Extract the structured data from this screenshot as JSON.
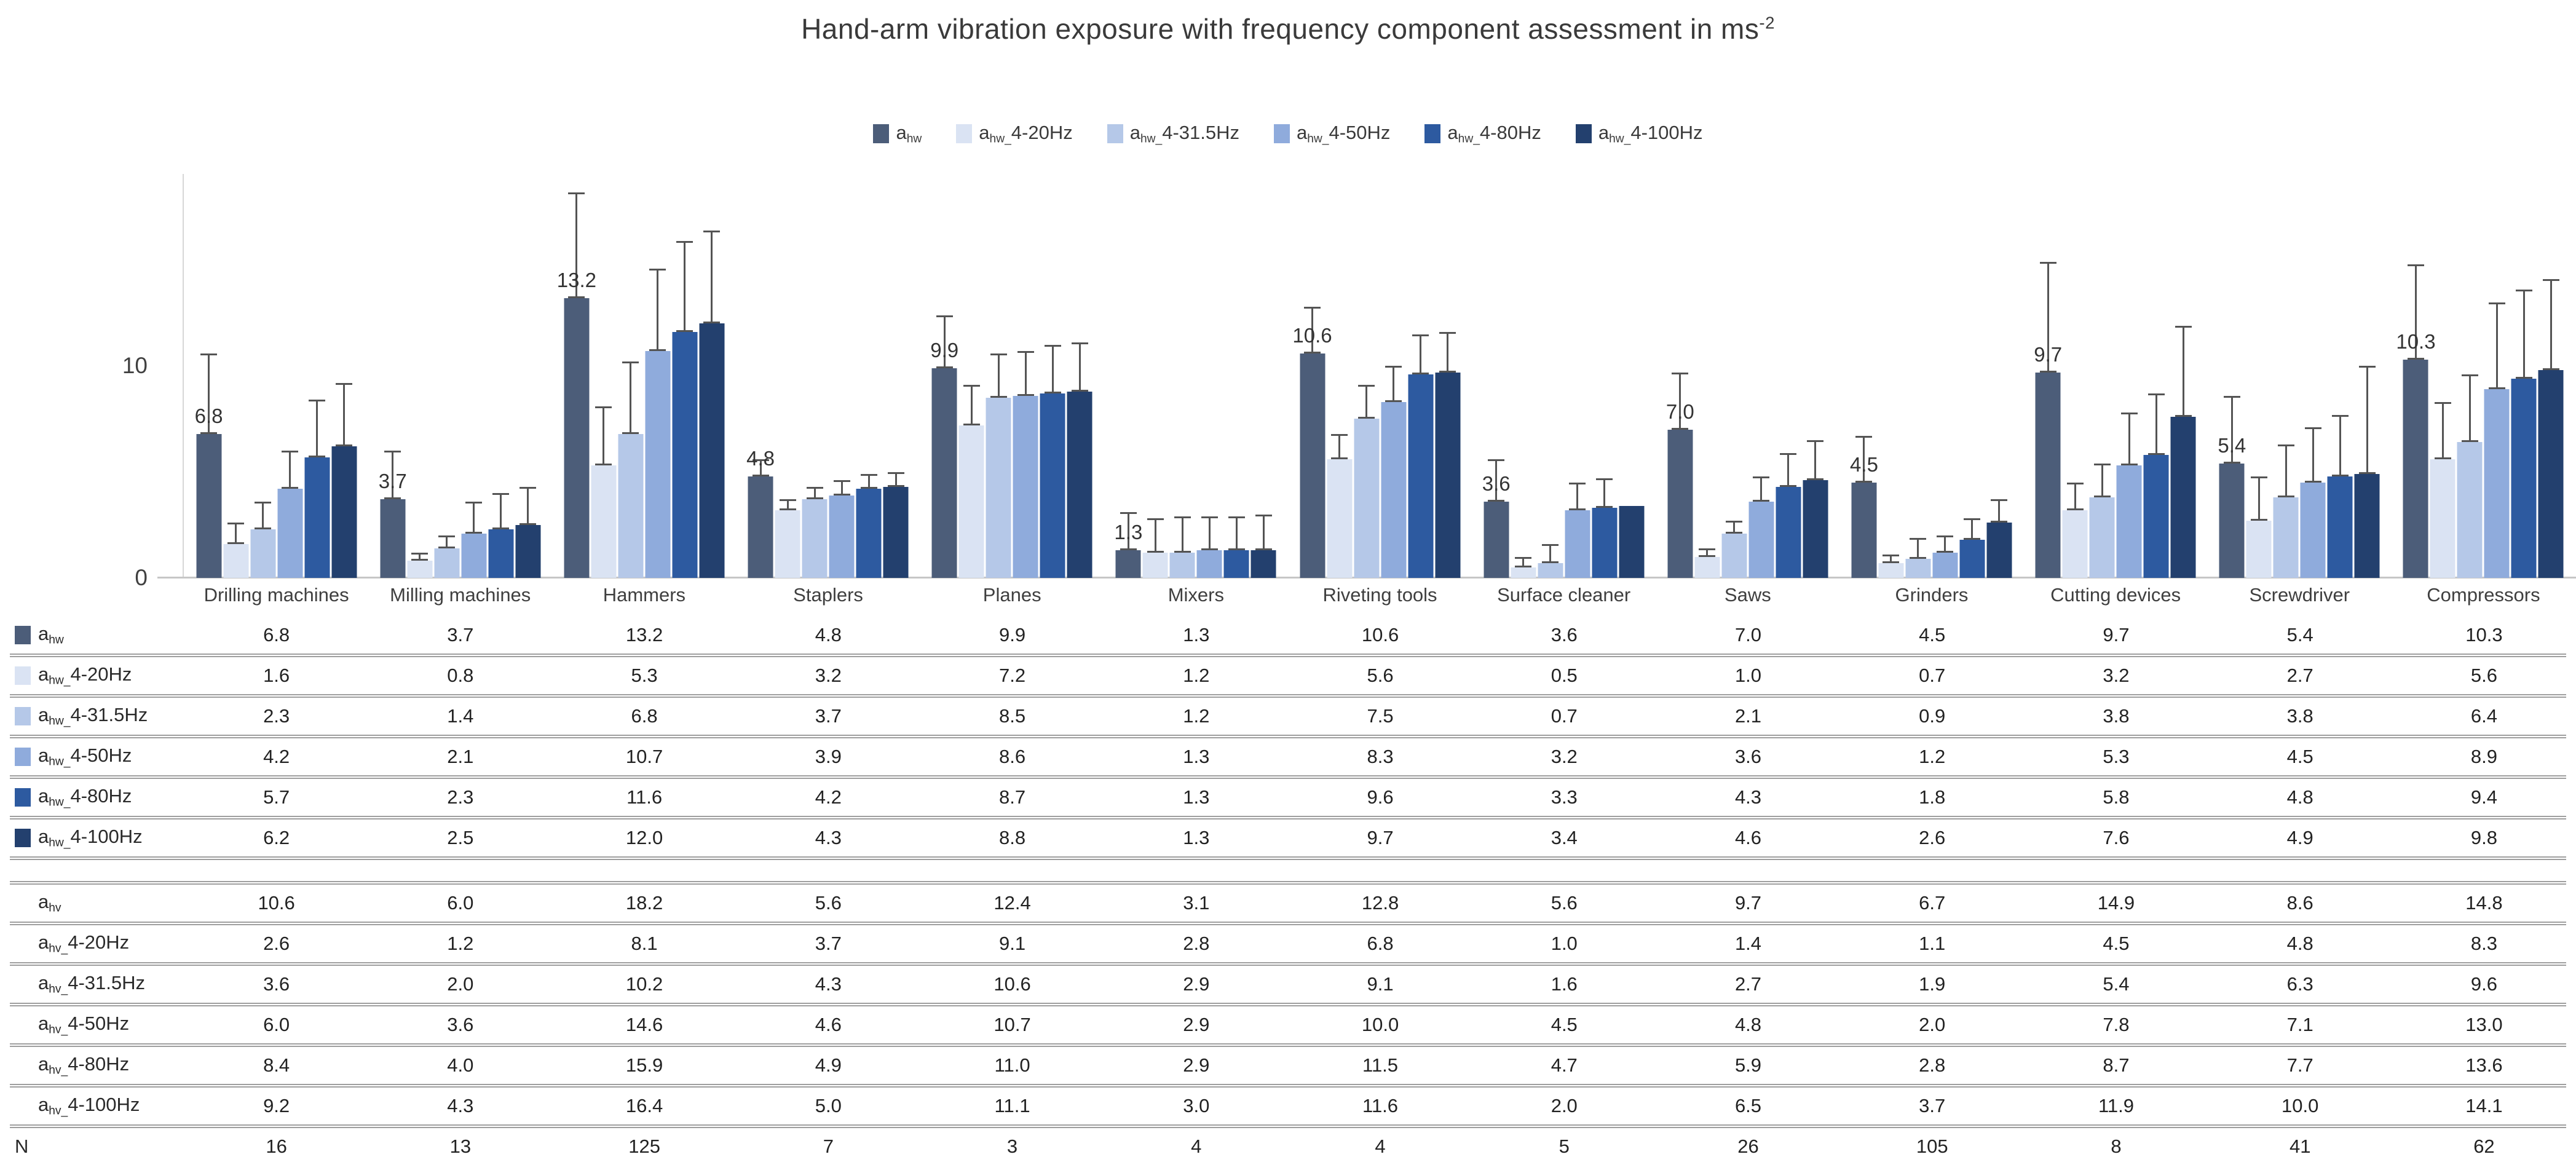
{
  "title": {
    "main": "Hand-arm vibration exposure with frequency component assessment in ms",
    "superscript": "-2"
  },
  "colors": {
    "axis_line": "#d6d6d6",
    "baseline": "#c6c6c6",
    "whisker": "#545454",
    "text": "#3a3a3a",
    "table_rule": "#9f9f9f"
  },
  "chart_data": {
    "type": "bar",
    "title": "Hand-arm vibration exposure with frequency component assessment in ms^-2",
    "ylabel": "",
    "xlabel": "",
    "ylim": [
      0,
      19
    ],
    "yticks": [
      0,
      10
    ],
    "gridlines": false,
    "legend_position": "top-center",
    "bar_label_series": 0,
    "error_bar_note": "whisker tops equal the corresponding a_hv row value; whisker base sits at the bar top (a_hw value)",
    "categories": [
      "Drilling machines",
      "Milling machines",
      "Hammers",
      "Staplers",
      "Planes",
      "Mixers",
      "Riveting tools",
      "Surface cleaner",
      "Saws",
      "Grinders",
      "Cutting devices",
      "Screwdriver",
      "Compressors"
    ],
    "series": [
      {
        "label": {
          "prefix": "a",
          "sub": "hw",
          "suffix": ""
        },
        "color": "#4c5d79",
        "values": [
          6.8,
          3.7,
          13.2,
          4.8,
          9.9,
          1.3,
          10.6,
          3.6,
          7.0,
          4.5,
          9.7,
          5.4,
          10.3
        ],
        "error_bar_tops": [
          10.6,
          6.0,
          18.2,
          5.6,
          12.4,
          3.1,
          12.8,
          5.6,
          9.7,
          6.7,
          14.9,
          8.6,
          14.8
        ]
      },
      {
        "label": {
          "prefix": "a",
          "sub": "hw_",
          "suffix": "4-20Hz"
        },
        "color": "#dae3f3",
        "values": [
          1.6,
          0.8,
          5.3,
          3.2,
          7.2,
          1.2,
          5.6,
          0.5,
          1.0,
          0.7,
          3.2,
          2.7,
          5.6
        ],
        "error_bar_tops": [
          2.6,
          1.2,
          8.1,
          3.7,
          9.1,
          2.8,
          6.8,
          1.0,
          1.4,
          1.1,
          4.5,
          4.8,
          8.3
        ]
      },
      {
        "label": {
          "prefix": "a",
          "sub": "hw_",
          "suffix": "4-31.5Hz"
        },
        "color": "#b5c8e8",
        "values": [
          2.3,
          1.4,
          6.8,
          3.7,
          8.5,
          1.2,
          7.5,
          0.7,
          2.1,
          0.9,
          3.8,
          3.8,
          6.4
        ],
        "error_bar_tops": [
          3.6,
          2.0,
          10.2,
          4.3,
          10.6,
          2.9,
          9.1,
          1.6,
          2.7,
          1.9,
          5.4,
          6.3,
          9.6
        ]
      },
      {
        "label": {
          "prefix": "a",
          "sub": "hw_",
          "suffix": "4-50Hz"
        },
        "color": "#8fabdc",
        "values": [
          4.2,
          2.1,
          10.7,
          3.9,
          8.6,
          1.3,
          8.3,
          3.2,
          3.6,
          1.2,
          5.3,
          4.5,
          8.9
        ],
        "error_bar_tops": [
          6.0,
          3.6,
          14.6,
          4.6,
          10.7,
          2.9,
          10.0,
          4.5,
          4.8,
          2.0,
          7.8,
          7.1,
          13.0
        ]
      },
      {
        "label": {
          "prefix": "a",
          "sub": "hw_",
          "suffix": "4-80Hz"
        },
        "color": "#2d5aa0",
        "values": [
          5.7,
          2.3,
          11.6,
          4.2,
          8.7,
          1.3,
          9.6,
          3.3,
          4.3,
          1.8,
          5.8,
          4.8,
          9.4
        ],
        "error_bar_tops": [
          8.4,
          4.0,
          15.9,
          4.9,
          11.0,
          2.9,
          11.5,
          4.7,
          5.9,
          2.8,
          8.7,
          7.7,
          13.6
        ]
      },
      {
        "label": {
          "prefix": "a",
          "sub": "hw_",
          "suffix": "4-100Hz"
        },
        "color": "#23406e",
        "values": [
          6.2,
          2.5,
          12.0,
          4.3,
          8.8,
          1.3,
          9.7,
          3.4,
          4.6,
          2.6,
          7.6,
          4.9,
          9.8
        ],
        "error_bar_tops": [
          9.2,
          4.3,
          16.4,
          5.0,
          11.1,
          3.0,
          11.6,
          2.0,
          6.5,
          3.7,
          11.9,
          10.0,
          14.1
        ]
      }
    ]
  },
  "table": {
    "hv_rows": [
      {
        "label": {
          "prefix": "a",
          "sub": "hv",
          "suffix": ""
        },
        "values": [
          10.6,
          6.0,
          18.2,
          5.6,
          12.4,
          3.1,
          12.8,
          5.6,
          9.7,
          6.7,
          14.9,
          8.6,
          14.8
        ]
      },
      {
        "label": {
          "prefix": "a",
          "sub": "hv_",
          "suffix": "4-20Hz"
        },
        "values": [
          2.6,
          1.2,
          8.1,
          3.7,
          9.1,
          2.8,
          6.8,
          1.0,
          1.4,
          1.1,
          4.5,
          4.8,
          8.3
        ]
      },
      {
        "label": {
          "prefix": "a",
          "sub": "hv_",
          "suffix": "4-31.5Hz"
        },
        "values": [
          3.6,
          2.0,
          10.2,
          4.3,
          10.6,
          2.9,
          9.1,
          1.6,
          2.7,
          1.9,
          5.4,
          6.3,
          9.6
        ]
      },
      {
        "label": {
          "prefix": "a",
          "sub": "hv_",
          "suffix": "4-50Hz"
        },
        "values": [
          6.0,
          3.6,
          14.6,
          4.6,
          10.7,
          2.9,
          10.0,
          4.5,
          4.8,
          2.0,
          7.8,
          7.1,
          13.0
        ]
      },
      {
        "label": {
          "prefix": "a",
          "sub": "hv_",
          "suffix": "4-80Hz"
        },
        "values": [
          8.4,
          4.0,
          15.9,
          4.9,
          11.0,
          2.9,
          11.5,
          4.7,
          5.9,
          2.8,
          8.7,
          7.7,
          13.6
        ]
      },
      {
        "label": {
          "prefix": "a",
          "sub": "hv_",
          "suffix": "4-100Hz"
        },
        "values": [
          9.2,
          4.3,
          16.4,
          5.0,
          11.1,
          3.0,
          11.6,
          2.0,
          6.5,
          3.7,
          11.9,
          10.0,
          14.1
        ]
      }
    ],
    "n_row": {
      "label": "N",
      "values": [
        16,
        13,
        125,
        7,
        3,
        4,
        4,
        5,
        26,
        105,
        8,
        41,
        62
      ]
    }
  }
}
